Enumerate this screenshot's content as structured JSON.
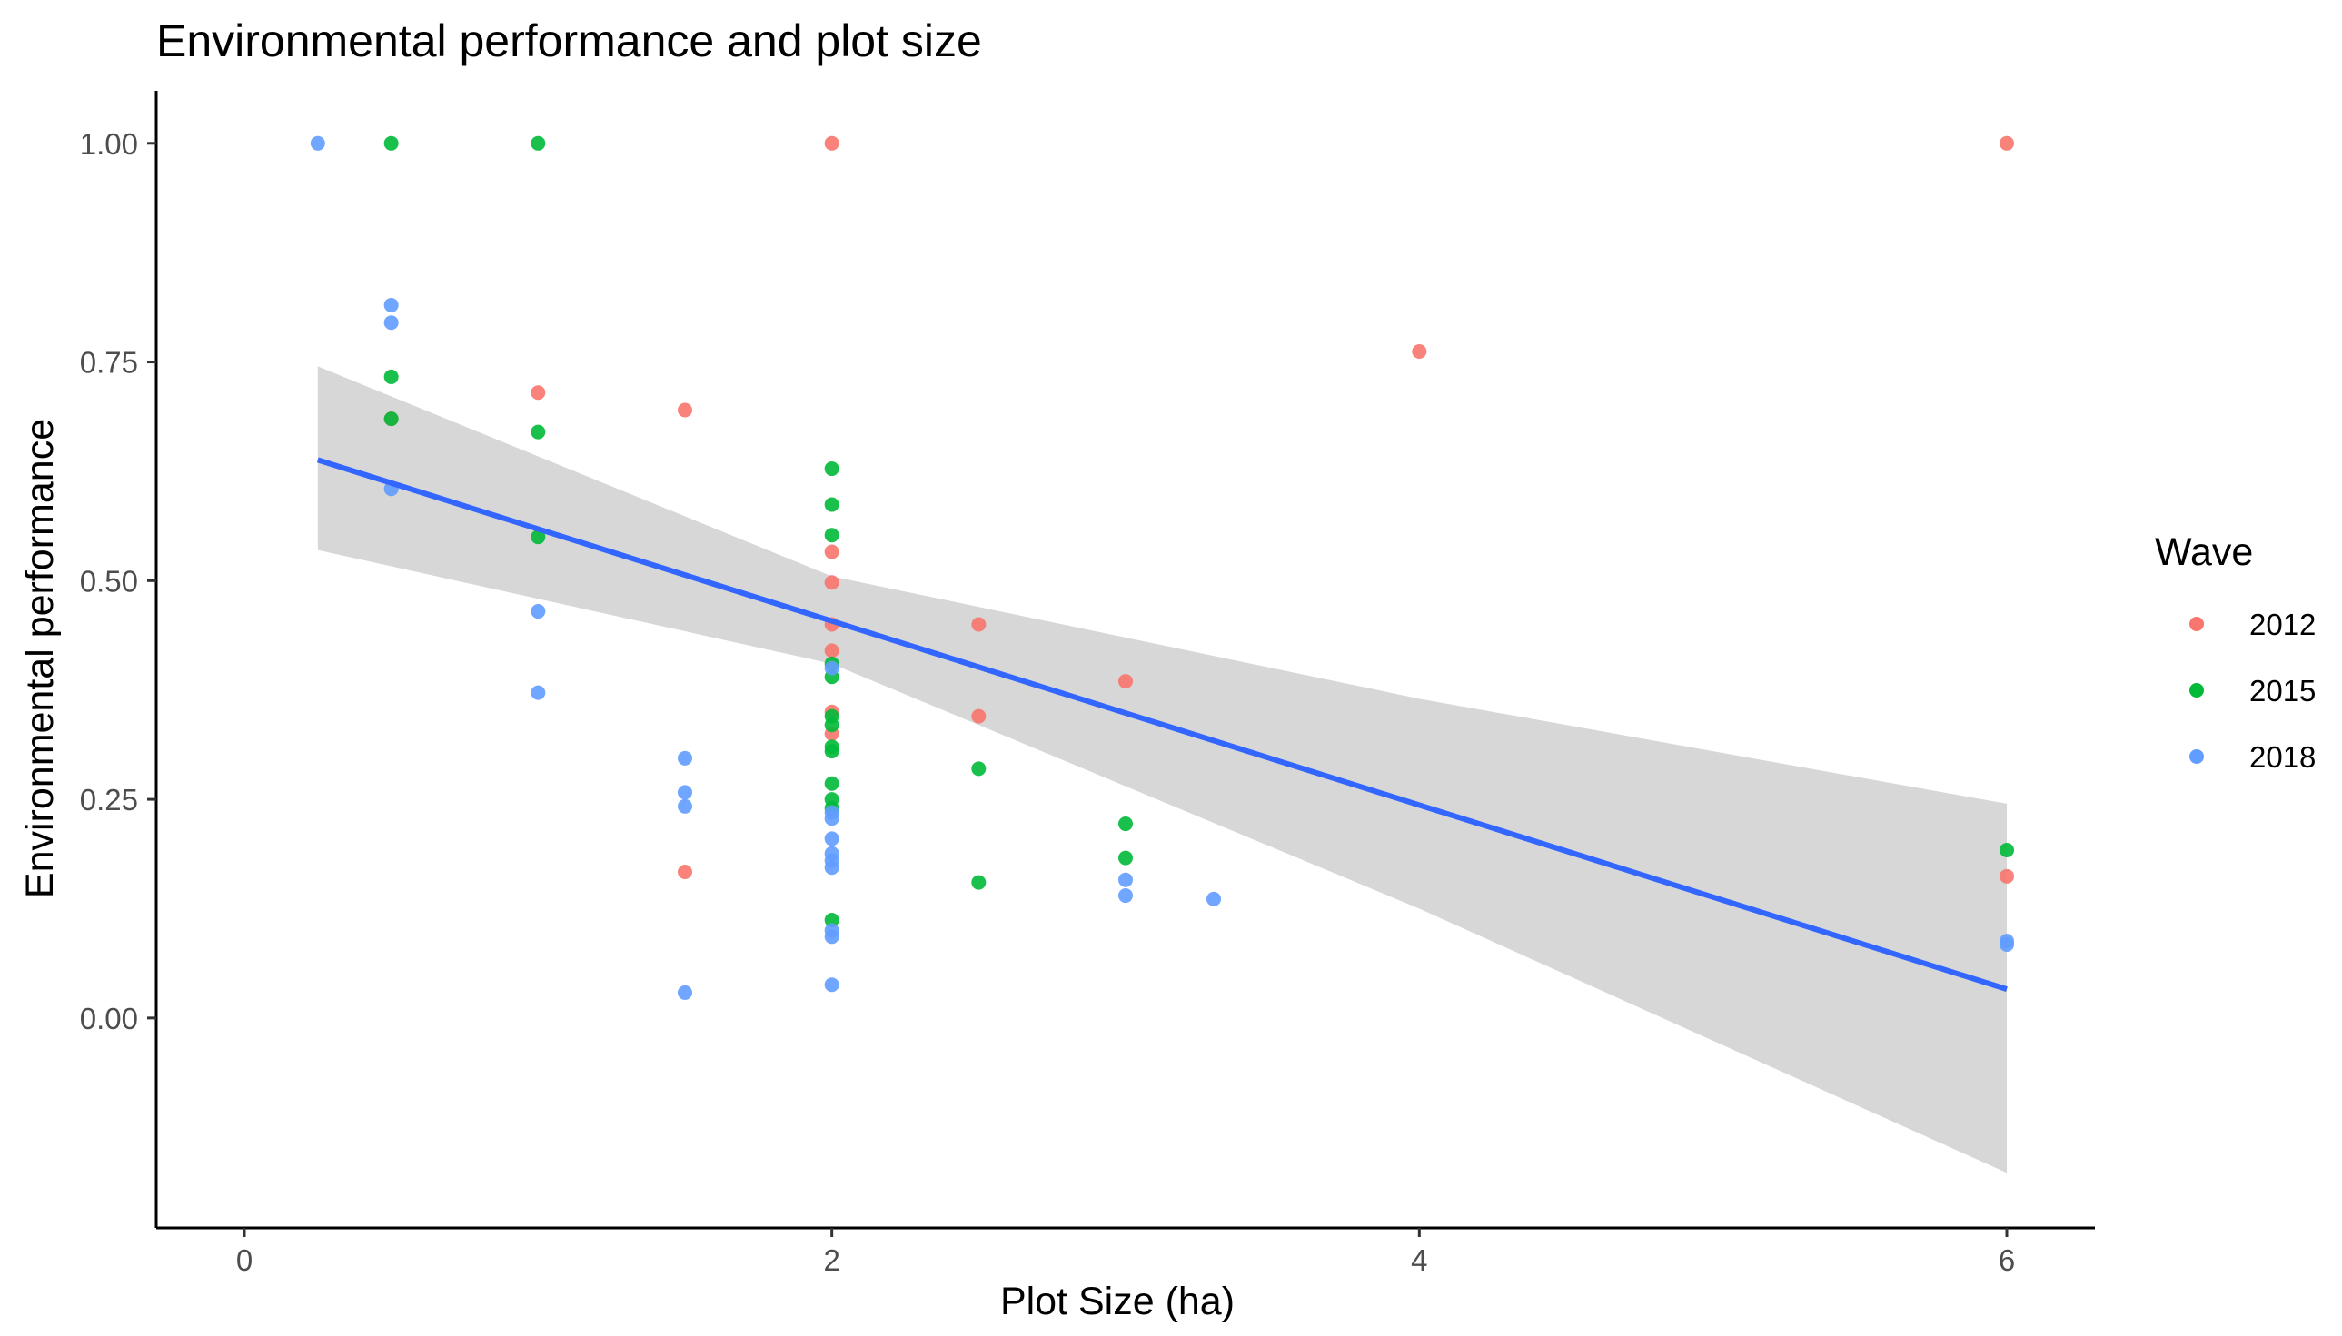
{
  "chart_data": {
    "type": "scatter",
    "title": "Environmental performance and plot size",
    "xlabel": "Plot Size (ha)",
    "ylabel": "Environmental performance",
    "xlim": [
      -0.3,
      6.3
    ],
    "ylim": [
      -0.24,
      1.06
    ],
    "x_ticks": [
      0,
      2,
      4,
      6
    ],
    "x_tick_labels": [
      "0",
      "2",
      "4",
      "6"
    ],
    "y_ticks": [
      0,
      0.25,
      0.5,
      0.75,
      1.0
    ],
    "y_tick_labels": [
      "0.00",
      "0.25",
      "0.50",
      "0.75",
      "1.00"
    ],
    "grid": false,
    "legend": {
      "title": "Wave",
      "position": "right"
    },
    "series": [
      {
        "name": "2012",
        "color": "#F8766D",
        "points": [
          [
            1.0,
            0.715
          ],
          [
            1.5,
            0.695
          ],
          [
            1.5,
            0.167
          ],
          [
            2.0,
            1.0
          ],
          [
            2.0,
            0.533
          ],
          [
            2.0,
            0.498
          ],
          [
            2.0,
            0.45
          ],
          [
            2.0,
            0.42
          ],
          [
            2.0,
            0.35
          ],
          [
            2.0,
            0.325
          ],
          [
            2.5,
            0.45
          ],
          [
            2.5,
            0.345
          ],
          [
            3.0,
            0.385
          ],
          [
            4.0,
            0.762
          ],
          [
            6.0,
            1.0
          ],
          [
            6.0,
            0.162
          ],
          [
            0.5,
            0.685
          ]
        ]
      },
      {
        "name": "2015",
        "color": "#00BA38",
        "points": [
          [
            0.5,
            1.0
          ],
          [
            0.5,
            0.733
          ],
          [
            0.5,
            0.685
          ],
          [
            1.0,
            1.0
          ],
          [
            1.0,
            0.67
          ],
          [
            1.0,
            0.55
          ],
          [
            2.0,
            0.628
          ],
          [
            2.0,
            0.587
          ],
          [
            2.0,
            0.552
          ],
          [
            2.0,
            0.405
          ],
          [
            2.0,
            0.39
          ],
          [
            2.0,
            0.345
          ],
          [
            2.0,
            0.335
          ],
          [
            2.0,
            0.31
          ],
          [
            2.0,
            0.305
          ],
          [
            2.0,
            0.268
          ],
          [
            2.0,
            0.25
          ],
          [
            2.0,
            0.24
          ],
          [
            2.0,
            0.112
          ],
          [
            2.5,
            0.285
          ],
          [
            2.5,
            0.155
          ],
          [
            3.0,
            0.222
          ],
          [
            3.0,
            0.183
          ],
          [
            6.0,
            0.192
          ]
        ]
      },
      {
        "name": "2018",
        "color": "#619CFF",
        "points": [
          [
            0.25,
            1.0
          ],
          [
            0.5,
            0.815
          ],
          [
            0.5,
            0.795
          ],
          [
            0.5,
            0.605
          ],
          [
            1.0,
            0.465
          ],
          [
            1.0,
            0.372
          ],
          [
            1.5,
            0.297
          ],
          [
            1.5,
            0.258
          ],
          [
            1.5,
            0.242
          ],
          [
            1.5,
            0.029
          ],
          [
            2.0,
            0.4
          ],
          [
            2.0,
            0.235
          ],
          [
            2.0,
            0.228
          ],
          [
            2.0,
            0.205
          ],
          [
            2.0,
            0.188
          ],
          [
            2.0,
            0.18
          ],
          [
            2.0,
            0.172
          ],
          [
            2.0,
            0.1
          ],
          [
            2.0,
            0.093
          ],
          [
            2.0,
            0.038
          ],
          [
            3.0,
            0.158
          ],
          [
            3.0,
            0.14
          ],
          [
            3.3,
            0.136
          ],
          [
            6.0,
            0.088
          ],
          [
            6.0,
            0.084
          ]
        ]
      }
    ],
    "trend": {
      "type": "linear",
      "color": "#3366FF",
      "band_color": "#D3D3D3",
      "x": [
        0.25,
        6.0
      ],
      "fit": [
        0.638,
        0.033
      ],
      "band_x": [
        0.25,
        2.0,
        4.0,
        6.0
      ],
      "band_lower": [
        0.535,
        0.405,
        0.125,
        -0.177
      ],
      "band_upper": [
        0.745,
        0.505,
        0.365,
        0.245
      ]
    }
  }
}
